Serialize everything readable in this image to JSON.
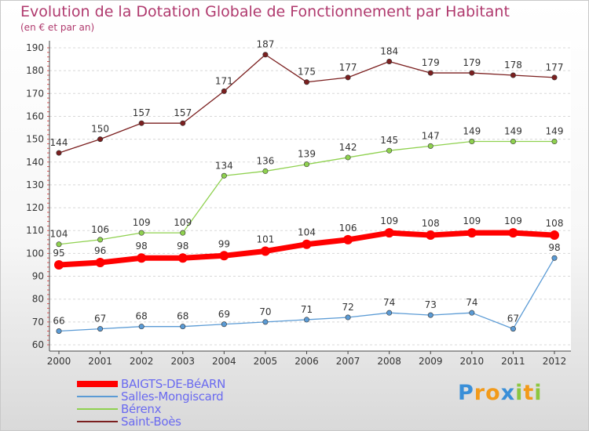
{
  "title": "Evolution de la Dotation Globale de Fonctionnement par Habitant",
  "subtitle": "(en € et par an)",
  "colors": {
    "title": "#b03a6e",
    "legend_text": "#6a6af0",
    "axis_text": "#333333"
  },
  "chart_data": {
    "type": "line",
    "x": [
      2000,
      2001,
      2002,
      2003,
      2004,
      2005,
      2006,
      2007,
      2008,
      2009,
      2010,
      2011,
      2012
    ],
    "ylim": [
      60,
      190
    ],
    "yticks": [
      60,
      70,
      80,
      90,
      100,
      110,
      120,
      130,
      140,
      150,
      160,
      170,
      180,
      190
    ],
    "grid": "horizontal dashed",
    "legend_position": "bottom-left",
    "series": [
      {
        "name": "BAIGTS-DE-BéARN",
        "color": "#ff0000",
        "values": [
          95,
          96,
          98,
          98,
          99,
          101,
          104,
          106,
          109,
          108,
          109,
          109,
          108
        ],
        "emphasis": true
      },
      {
        "name": "Salles-Mongiscard",
        "color": "#5b9bd5",
        "values": [
          66,
          67,
          68,
          68,
          69,
          70,
          71,
          72,
          74,
          73,
          74,
          67,
          98
        ],
        "emphasis": false
      },
      {
        "name": "Bérenx",
        "color": "#8fd14f",
        "values": [
          104,
          106,
          109,
          109,
          134,
          136,
          139,
          142,
          145,
          147,
          149,
          149,
          149
        ],
        "emphasis": false
      },
      {
        "name": "Saint-Boès",
        "color": "#7b1f1f",
        "values": [
          144,
          150,
          157,
          157,
          171,
          187,
          175,
          177,
          184,
          179,
          179,
          178,
          177
        ],
        "emphasis": false
      }
    ]
  },
  "logo": {
    "letters": [
      {
        "ch": "P",
        "color": "#3a8fd8"
      },
      {
        "ch": "r",
        "color": "#f29a1a"
      },
      {
        "ch": "o",
        "color": "#f29a1a"
      },
      {
        "ch": "x",
        "color": "#3a8fd8"
      },
      {
        "ch": "i",
        "color": "#8cc63f"
      },
      {
        "ch": "t",
        "color": "#f29a1a"
      },
      {
        "ch": "i",
        "color": "#8cc63f"
      }
    ]
  }
}
